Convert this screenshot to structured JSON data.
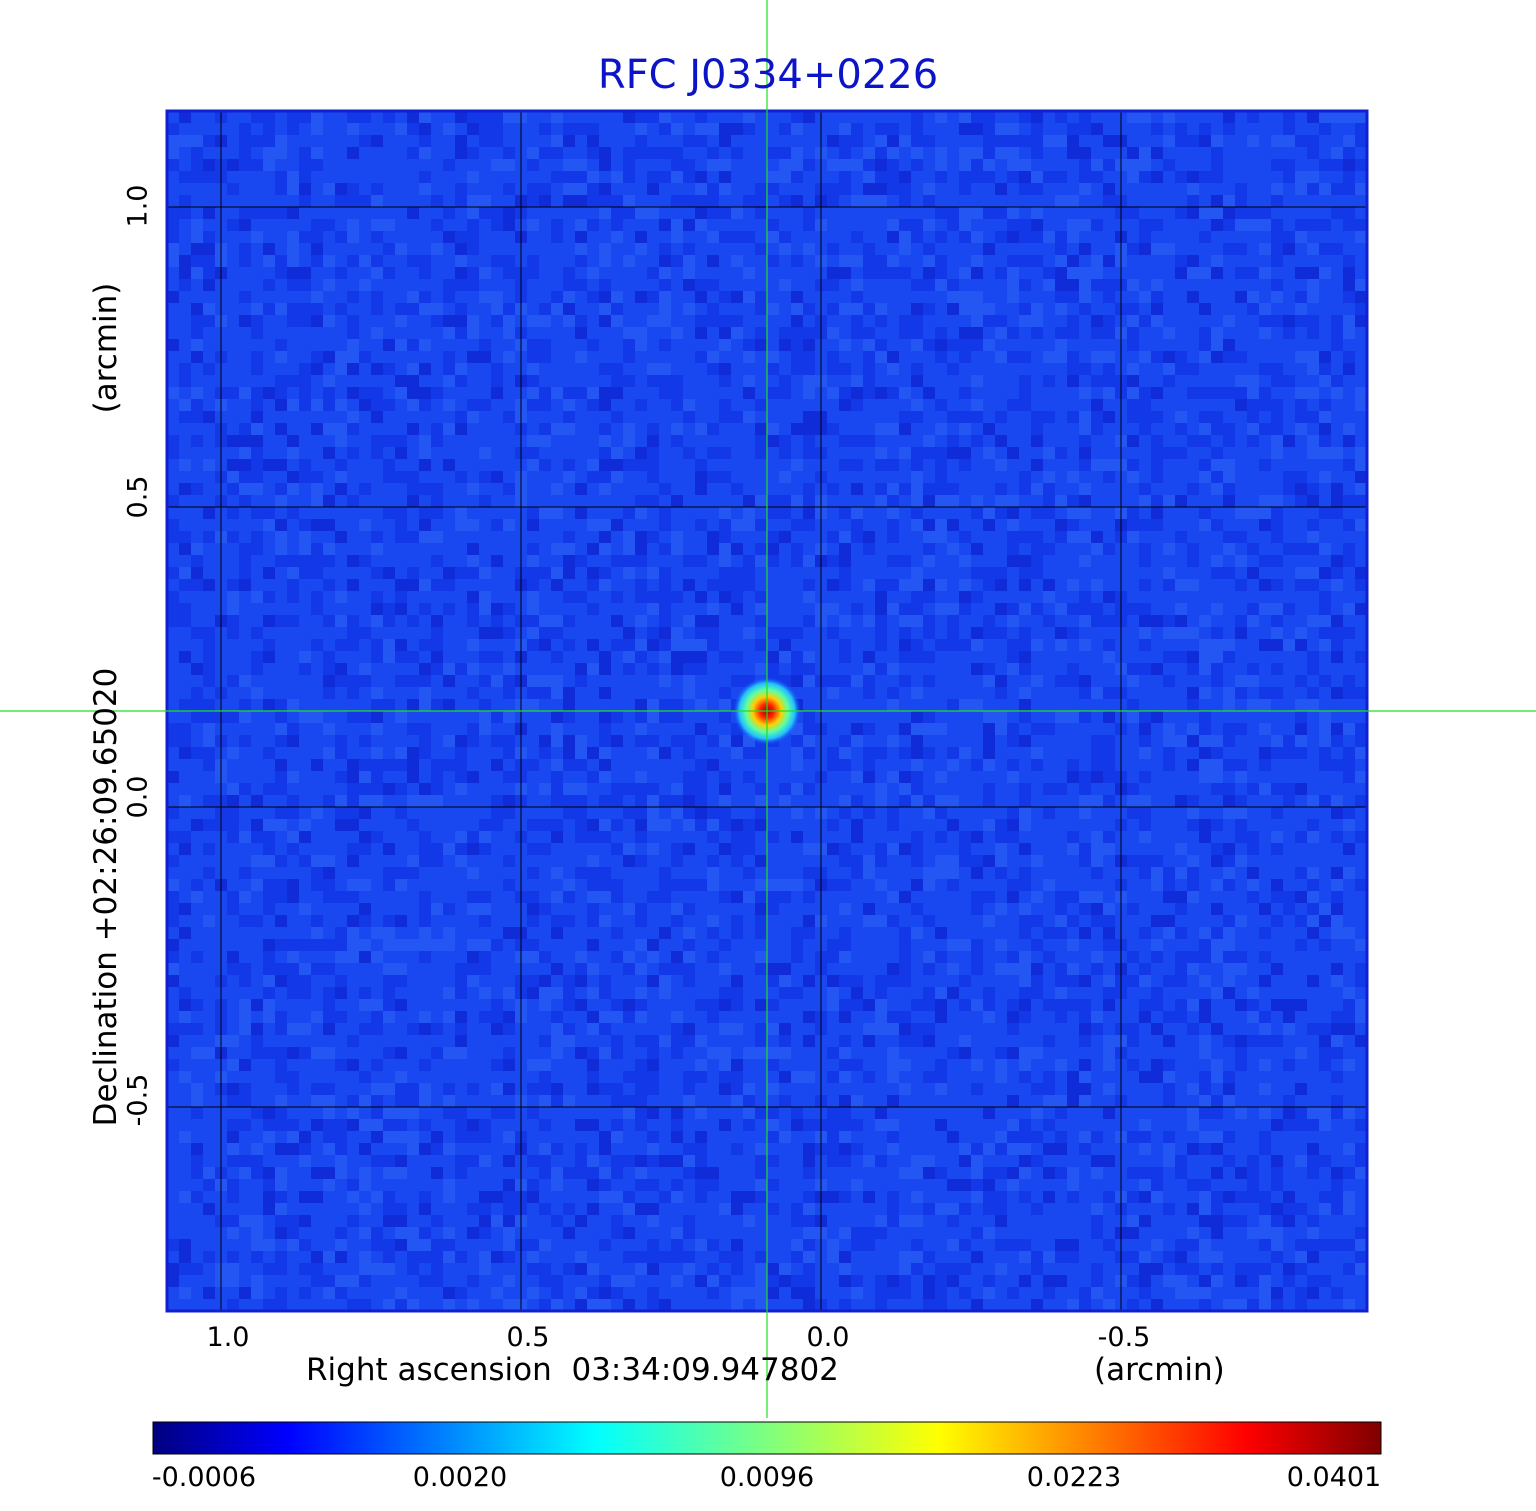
{
  "chart_data": {
    "type": "heatmap",
    "title": "RFC J0334+0226",
    "xlabel": "Right ascension  03:34:09.947802",
    "xlabel_unit": "(arcmin)",
    "ylabel": "Declination  +02:26:09.65020",
    "ylabel_unit": "(arcmin)",
    "x_ticks": [
      1.0,
      0.5,
      0.0,
      -0.5
    ],
    "x_tick_labels": [
      "1.0",
      "0.5",
      "0.0",
      "-0.5"
    ],
    "y_ticks": [
      1.0,
      0.5,
      0.0,
      -0.5
    ],
    "y_tick_labels": [
      "1.0",
      "0.5",
      "0.0",
      "-0.5"
    ],
    "xlim": [
      1.09,
      -0.91
    ],
    "ylim": [
      -0.84,
      1.16
    ],
    "grid": true,
    "source_peak": {
      "x": 0.09,
      "y": 0.16,
      "value": 0.0401
    },
    "crosshair": {
      "x": 0.09,
      "y": 0.16
    },
    "colorbar": {
      "tick_labels": [
        "-0.0006",
        "0.0020",
        "0.0096",
        "0.0223",
        "0.0401"
      ],
      "min": -0.0006,
      "max": 0.0401,
      "colormap": "jet"
    },
    "colors": {
      "title": "#0c14c8",
      "frame": "#1020d0",
      "background_field": "#1a48f0",
      "crosshair": "#20e020",
      "grid": "#000000"
    }
  }
}
